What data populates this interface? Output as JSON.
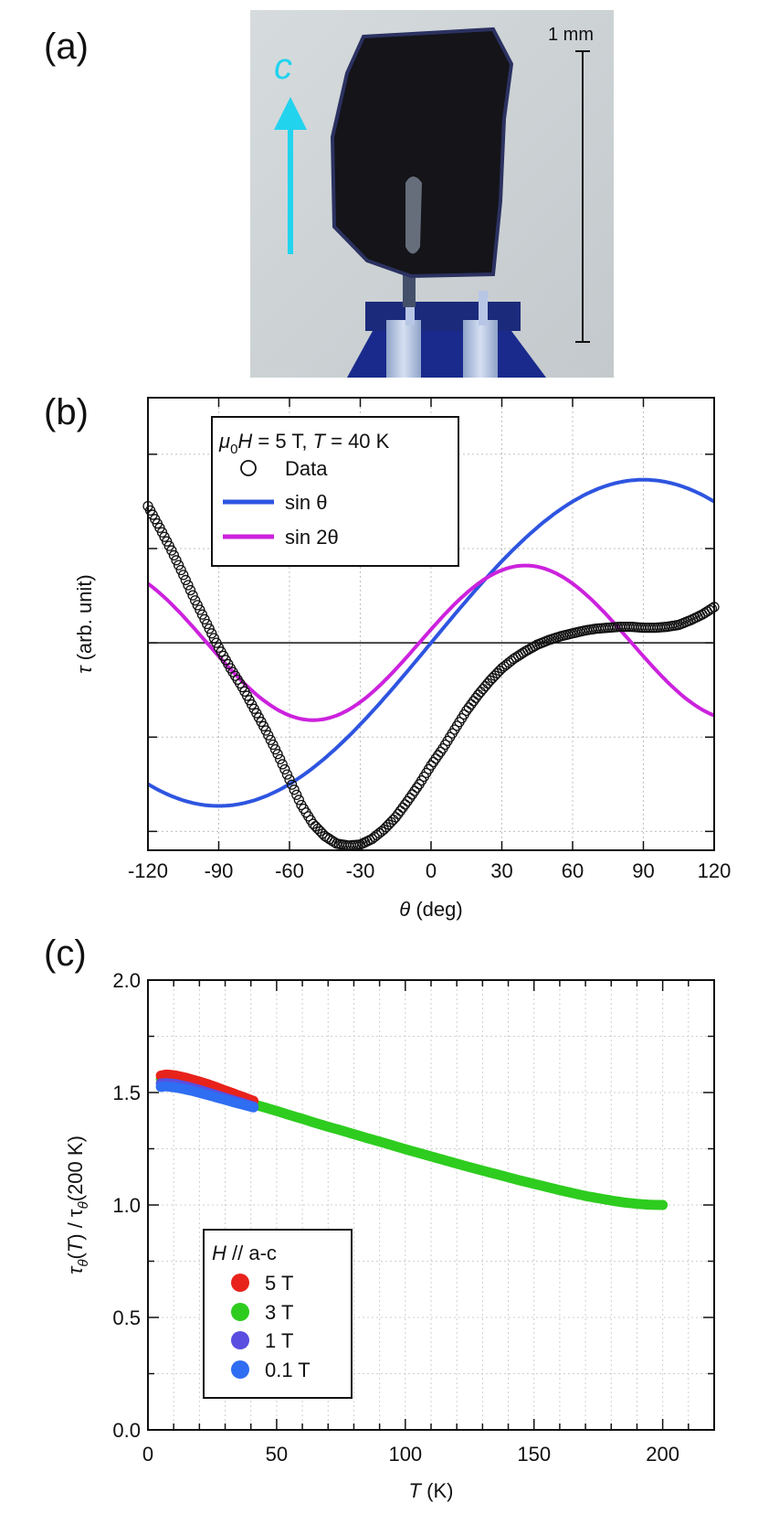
{
  "panels": {
    "a": "(a)",
    "b": "(b)",
    "c": "(c)"
  },
  "photo": {
    "scale_label": "1 mm",
    "axis_label": "c",
    "arrow_color": "#22d3ee"
  },
  "chart_data": [
    {
      "type": "line",
      "panel": "b",
      "xlabel_symbol": "θ",
      "xlabel_unit": "(deg)",
      "ylabel_symbol": "τ",
      "ylabel_unit": "(arb. unit)",
      "xlim": [
        -120,
        120
      ],
      "ylim": [
        -2.2,
        2.6
      ],
      "xticks": [
        -120,
        -90,
        -60,
        -30,
        0,
        30,
        60,
        90,
        120
      ],
      "grid": true,
      "legend_position": "top-left",
      "legend_title": {
        "mu": "μ",
        "sub0": "0",
        "h_part": "H = 5 T, ",
        "t_sym": "T",
        "t_part": " = 40 K"
      },
      "series": [
        {
          "name": "Data",
          "style": "open-circles",
          "color": "#111111",
          "x": [
            -120,
            -115,
            -110,
            -105,
            -100,
            -95,
            -90,
            -85,
            -80,
            -75,
            -70,
            -65,
            -60,
            -55,
            -50,
            -45,
            -40,
            -35,
            -30,
            -25,
            -20,
            -15,
            -10,
            -5,
            0,
            5,
            10,
            15,
            20,
            25,
            30,
            35,
            40,
            45,
            50,
            55,
            60,
            65,
            70,
            75,
            80,
            85,
            90,
            95,
            100,
            105,
            110,
            115,
            120
          ],
          "y": [
            1.45,
            1.22,
            0.98,
            0.72,
            0.45,
            0.2,
            -0.05,
            -0.27,
            -0.47,
            -0.7,
            -0.93,
            -1.18,
            -1.45,
            -1.72,
            -1.92,
            -2.05,
            -2.13,
            -2.15,
            -2.14,
            -2.08,
            -1.98,
            -1.85,
            -1.68,
            -1.5,
            -1.3,
            -1.12,
            -0.92,
            -0.72,
            -0.55,
            -0.4,
            -0.27,
            -0.17,
            -0.09,
            -0.02,
            0.03,
            0.07,
            0.1,
            0.13,
            0.15,
            0.16,
            0.17,
            0.17,
            0.16,
            0.16,
            0.17,
            0.19,
            0.24,
            0.3,
            0.38
          ]
        },
        {
          "name": "sin θ",
          "style": "line",
          "color": "#2e55e0",
          "func": "sin",
          "amplitude": 1.73,
          "frequency": 1,
          "phase_deg": 0
        },
        {
          "name": "sin 2θ",
          "style": "line",
          "color": "#cc22dd",
          "func": "sin",
          "amplitude": 0.82,
          "frequency": 2,
          "phase_deg": 10
        }
      ]
    },
    {
      "type": "scatter",
      "panel": "c",
      "xlabel_symbol": "T",
      "xlabel_unit": "(K)",
      "ylabel_parts": [
        "τ",
        "θ",
        "(",
        "T",
        ") / τ",
        "θ",
        "(200 K)"
      ],
      "xlim": [
        0,
        220
      ],
      "ylim": [
        0,
        2
      ],
      "xticks": [
        0,
        50,
        100,
        150,
        200
      ],
      "yticks": [
        0.0,
        0.5,
        1.0,
        1.5,
        2.0
      ],
      "ytick_labels": [
        "0.0",
        "0.5",
        "1.0",
        "1.5",
        "2.0"
      ],
      "grid": true,
      "legend_position": "bottom-left",
      "legend_title": "H // a-c",
      "series": [
        {
          "name": "5 T",
          "color": "#e8231c",
          "x": [
            5,
            7,
            9,
            11,
            13,
            15,
            17,
            19,
            21,
            23,
            25,
            27,
            29,
            31,
            33,
            35,
            37,
            39,
            41
          ],
          "y": [
            1.575,
            1.58,
            1.578,
            1.575,
            1.57,
            1.565,
            1.558,
            1.552,
            1.545,
            1.538,
            1.53,
            1.522,
            1.513,
            1.505,
            1.497,
            1.488,
            1.48,
            1.471,
            1.463
          ]
        },
        {
          "name": "3 T",
          "color": "#2ecc1f",
          "x": [
            5,
            7,
            9,
            11,
            13,
            15,
            17,
            19,
            21,
            23,
            25,
            27,
            29,
            31,
            33,
            35,
            37,
            39,
            41,
            45,
            50,
            55,
            60,
            65,
            70,
            75,
            80,
            85,
            90,
            95,
            100,
            105,
            110,
            115,
            120,
            125,
            130,
            135,
            140,
            145,
            150,
            155,
            160,
            165,
            170,
            175,
            180,
            185,
            190,
            195,
            200
          ],
          "y": [
            1.56,
            1.562,
            1.56,
            1.557,
            1.552,
            1.547,
            1.54,
            1.533,
            1.526,
            1.518,
            1.51,
            1.502,
            1.494,
            1.486,
            1.478,
            1.47,
            1.462,
            1.455,
            1.447,
            1.435,
            1.418,
            1.4,
            1.383,
            1.365,
            1.348,
            1.332,
            1.315,
            1.298,
            1.282,
            1.265,
            1.248,
            1.232,
            1.216,
            1.2,
            1.184,
            1.168,
            1.153,
            1.138,
            1.123,
            1.108,
            1.094,
            1.08,
            1.066,
            1.053,
            1.04,
            1.03,
            1.02,
            1.011,
            1.005,
            1.001,
            1.0
          ]
        },
        {
          "name": "1 T",
          "color": "#5a4ee0",
          "x": [
            5,
            7,
            9,
            11,
            13,
            15,
            17,
            19,
            21,
            23,
            25,
            27,
            29,
            31,
            33,
            35,
            37,
            39,
            41
          ],
          "y": [
            1.54,
            1.542,
            1.54,
            1.537,
            1.532,
            1.527,
            1.521,
            1.515,
            1.508,
            1.501,
            1.494,
            1.487,
            1.48,
            1.473,
            1.466,
            1.459,
            1.452,
            1.445,
            1.438
          ]
        },
        {
          "name": "0.1 T",
          "color": "#2f6ef2",
          "x": [
            5,
            7,
            9,
            11,
            13,
            15,
            17,
            19,
            21,
            23,
            25,
            27,
            29,
            31,
            33,
            35,
            37,
            39,
            41
          ],
          "y": [
            1.525,
            1.528,
            1.525,
            1.522,
            1.518,
            1.513,
            1.508,
            1.502,
            1.496,
            1.49,
            1.484,
            1.477,
            1.471,
            1.465,
            1.458,
            1.452,
            1.446,
            1.44,
            1.434
          ]
        }
      ]
    }
  ]
}
